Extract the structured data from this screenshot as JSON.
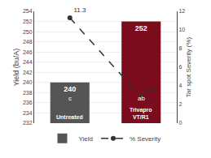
{
  "chart_data": {
    "type": "bar",
    "categories": [
      "Untreated",
      "Trivapro\nVT/R1"
    ],
    "series": [
      {
        "name": "Yield",
        "type": "bar",
        "colors": [
          "#555555",
          "#7a0c1e"
        ],
        "values": [
          240,
          252
        ]
      },
      {
        "name": "% Severity",
        "type": "line",
        "axis": "y2",
        "color": "#333333",
        "line_style": "dashed",
        "marker": "circle",
        "values": [
          11.3,
          2.8
        ]
      }
    ],
    "annotations": [
      {
        "category": "Untreated",
        "text": "c"
      },
      {
        "category": "Trivapro\nVT/R1",
        "text": "ab"
      }
    ],
    "ylabel": "Yield (bu/A)",
    "y2label": "Tar spot Severity (%)",
    "ylim": [
      232,
      254
    ],
    "yticks": [
      232,
      234,
      236,
      238,
      240,
      242,
      244,
      246,
      248,
      250,
      252,
      254
    ],
    "y2lim": [
      0,
      12
    ],
    "y2ticks": [
      0,
      2,
      4,
      6,
      8,
      10,
      12
    ],
    "grid": true,
    "data_labels": true,
    "tick_labels": "y",
    "legend": "bottom"
  }
}
